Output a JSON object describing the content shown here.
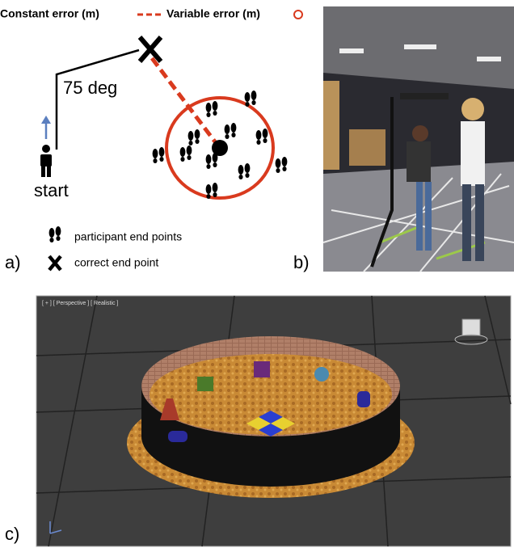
{
  "panel_a": {
    "legend_constant": "Constant error (m)",
    "legend_variable": "Variable error (m)",
    "angle_label": "75 deg",
    "start_label": "start",
    "key_participant": "participant end points",
    "key_correct": "correct end point"
  },
  "panel_labels": [
    "a)",
    "b)",
    "c)"
  ],
  "viewport_label": "[ + ] [ Perspective ] [ Realistic ]"
}
